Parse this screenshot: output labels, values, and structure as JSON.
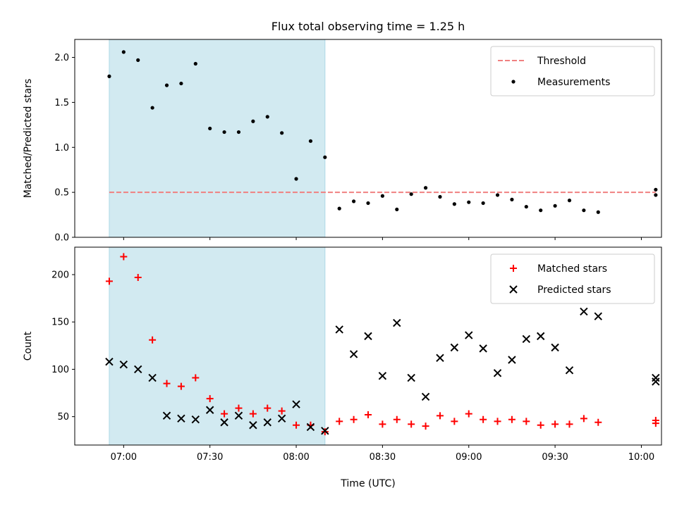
{
  "title": "Flux total observing time = 1.25 h",
  "xlabel": "Time (UTC)",
  "x_tick_labels": [
    "07:00",
    "07:30",
    "08:00",
    "08:30",
    "09:00",
    "09:30",
    "10:00"
  ],
  "colors": {
    "threshold": "#f08080",
    "measurements": "#000000",
    "matched": "#ff0000",
    "predicted": "#000000",
    "span": "#add8e6"
  },
  "chart_data": [
    {
      "type": "scatter",
      "ylabel": "Matched/Predicted stars",
      "xlim": [
        "06:43",
        "10:07"
      ],
      "ylim": [
        0,
        2.2
      ],
      "y_ticks": [
        "0.0",
        "0.5",
        "1.0",
        "1.5",
        "2.0"
      ],
      "shaded_span": [
        "06:55",
        "08:10"
      ],
      "legend_position": "top-right",
      "threshold": {
        "name": "Threshold",
        "value": 0.5,
        "x_range": [
          "06:55",
          "10:05"
        ]
      },
      "series": [
        {
          "name": "Measurements",
          "points": [
            [
              "06:55",
              1.79
            ],
            [
              "07:00",
              2.06
            ],
            [
              "07:05",
              1.97
            ],
            [
              "07:10",
              1.44
            ],
            [
              "07:15",
              1.69
            ],
            [
              "07:20",
              1.71
            ],
            [
              "07:25",
              1.93
            ],
            [
              "07:30",
              1.21
            ],
            [
              "07:35",
              1.17
            ],
            [
              "07:40",
              1.17
            ],
            [
              "07:45",
              1.29
            ],
            [
              "07:50",
              1.34
            ],
            [
              "07:55",
              1.16
            ],
            [
              "08:00",
              0.65
            ],
            [
              "08:05",
              1.07
            ],
            [
              "08:10",
              0.89
            ],
            [
              "08:15",
              0.32
            ],
            [
              "08:20",
              0.4
            ],
            [
              "08:25",
              0.38
            ],
            [
              "08:30",
              0.46
            ],
            [
              "08:35",
              0.31
            ],
            [
              "08:40",
              0.48
            ],
            [
              "08:45",
              0.55
            ],
            [
              "08:50",
              0.45
            ],
            [
              "08:55",
              0.37
            ],
            [
              "09:00",
              0.39
            ],
            [
              "09:05",
              0.38
            ],
            [
              "09:10",
              0.47
            ],
            [
              "09:15",
              0.42
            ],
            [
              "09:20",
              0.34
            ],
            [
              "09:25",
              0.3
            ],
            [
              "09:30",
              0.35
            ],
            [
              "09:35",
              0.41
            ],
            [
              "09:40",
              0.3
            ],
            [
              "09:45",
              0.28
            ],
            [
              "10:05",
              0.47
            ],
            [
              "10:05",
              0.53
            ]
          ]
        }
      ]
    },
    {
      "type": "scatter",
      "ylabel": "Count",
      "xlim": [
        "06:43",
        "10:07"
      ],
      "ylim": [
        20,
        229
      ],
      "y_ticks": [
        "50",
        "100",
        "150",
        "200"
      ],
      "shaded_span": [
        "06:55",
        "08:10"
      ],
      "legend_position": "top-right",
      "series": [
        {
          "name": "Matched stars",
          "marker": "+",
          "points": [
            [
              "06:55",
              193
            ],
            [
              "07:00",
              219
            ],
            [
              "07:05",
              197
            ],
            [
              "07:10",
              131
            ],
            [
              "07:15",
              85
            ],
            [
              "07:20",
              82
            ],
            [
              "07:25",
              91
            ],
            [
              "07:30",
              69
            ],
            [
              "07:35",
              53
            ],
            [
              "07:40",
              59
            ],
            [
              "07:45",
              53
            ],
            [
              "07:50",
              59
            ],
            [
              "07:55",
              56
            ],
            [
              "08:00",
              41
            ],
            [
              "08:05",
              41
            ],
            [
              "08:10",
              34
            ],
            [
              "08:15",
              45
            ],
            [
              "08:20",
              47
            ],
            [
              "08:25",
              52
            ],
            [
              "08:30",
              42
            ],
            [
              "08:35",
              47
            ],
            [
              "08:40",
              42
            ],
            [
              "08:45",
              40
            ],
            [
              "08:50",
              51
            ],
            [
              "08:55",
              45
            ],
            [
              "09:00",
              53
            ],
            [
              "09:05",
              47
            ],
            [
              "09:10",
              45
            ],
            [
              "09:15",
              47
            ],
            [
              "09:20",
              45
            ],
            [
              "09:25",
              41
            ],
            [
              "09:30",
              42
            ],
            [
              "09:35",
              42
            ],
            [
              "09:40",
              48
            ],
            [
              "09:45",
              44
            ],
            [
              "10:05",
              43
            ],
            [
              "10:05",
              46
            ]
          ]
        },
        {
          "name": "Predicted stars",
          "marker": "x",
          "points": [
            [
              "06:55",
              108
            ],
            [
              "07:00",
              105
            ],
            [
              "07:05",
              100
            ],
            [
              "07:10",
              91
            ],
            [
              "07:15",
              51
            ],
            [
              "07:20",
              48
            ],
            [
              "07:25",
              47
            ],
            [
              "07:30",
              57
            ],
            [
              "07:35",
              44
            ],
            [
              "07:40",
              51
            ],
            [
              "07:45",
              41
            ],
            [
              "07:50",
              44
            ],
            [
              "07:55",
              48
            ],
            [
              "08:00",
              63
            ],
            [
              "08:05",
              39
            ],
            [
              "08:10",
              35
            ],
            [
              "08:15",
              142
            ],
            [
              "08:20",
              116
            ],
            [
              "08:25",
              135
            ],
            [
              "08:30",
              93
            ],
            [
              "08:35",
              149
            ],
            [
              "08:40",
              91
            ],
            [
              "08:45",
              71
            ],
            [
              "08:50",
              112
            ],
            [
              "08:55",
              123
            ],
            [
              "09:00",
              136
            ],
            [
              "09:05",
              122
            ],
            [
              "09:10",
              96
            ],
            [
              "09:15",
              110
            ],
            [
              "09:20",
              132
            ],
            [
              "09:25",
              135
            ],
            [
              "09:30",
              123
            ],
            [
              "09:35",
              99
            ],
            [
              "09:40",
              161
            ],
            [
              "09:45",
              156
            ],
            [
              "10:05",
              91
            ],
            [
              "10:05",
              87
            ]
          ]
        }
      ]
    }
  ]
}
